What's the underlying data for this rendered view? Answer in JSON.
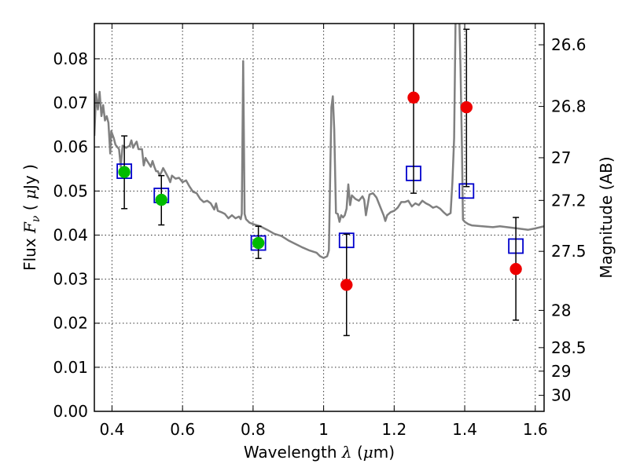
{
  "chart_data": {
    "type": "scatter",
    "xlabel": "Wavelength  λ (μm)",
    "xlabel_parts": {
      "pre": "Wavelength  ",
      "sym": "λ",
      "post": " (",
      "mu": "μ",
      "unit": "m)"
    },
    "ylabel": "Flux  Fν  ( μJy )",
    "ylabel_parts": {
      "pre": "Flux  ",
      "F": "F",
      "nu": "ν",
      "mid": "  ( ",
      "mu": "μ",
      "unit": "Jy )"
    },
    "y2label": "Magnitude (AB)",
    "xlim": [
      0.35,
      1.625
    ],
    "ylim": [
      0.0,
      0.088
    ],
    "grid": true,
    "x_ticks": [
      {
        "value": 0.4,
        "label": "0.4"
      },
      {
        "value": 0.6,
        "label": "0.6"
      },
      {
        "value": 0.8,
        "label": "0.8"
      },
      {
        "value": 1.0,
        "label": "1"
      },
      {
        "value": 1.2,
        "label": "1.2"
      },
      {
        "value": 1.4,
        "label": "1.4"
      },
      {
        "value": 1.6,
        "label": "1.6"
      }
    ],
    "y_ticks": [
      {
        "value": 0.0,
        "label": "0.00"
      },
      {
        "value": 0.01,
        "label": "0.01"
      },
      {
        "value": 0.02,
        "label": "0.02"
      },
      {
        "value": 0.03,
        "label": "0.03"
      },
      {
        "value": 0.04,
        "label": "0.04"
      },
      {
        "value": 0.05,
        "label": "0.05"
      },
      {
        "value": 0.06,
        "label": "0.06"
      },
      {
        "value": 0.07,
        "label": "0.07"
      },
      {
        "value": 0.08,
        "label": "0.08"
      }
    ],
    "y2_ticks": [
      {
        "mag": 26.6,
        "label": "26.6"
      },
      {
        "mag": 26.8,
        "label": "26.8"
      },
      {
        "mag": 27.0,
        "label": "27"
      },
      {
        "mag": 27.2,
        "label": "27.2"
      },
      {
        "mag": 27.5,
        "label": "27.5"
      },
      {
        "mag": 28.0,
        "label": "28"
      },
      {
        "mag": 28.5,
        "label": "28.5"
      },
      {
        "mag": 29.0,
        "label": "29"
      },
      {
        "mag": 30.0,
        "label": "30"
      }
    ],
    "series": [
      {
        "kind": "spectrum",
        "color": "#808080",
        "points": [
          [
            0.35,
            0.0625
          ],
          [
            0.355,
            0.072
          ],
          [
            0.36,
            0.0685
          ],
          [
            0.365,
            0.0725
          ],
          [
            0.37,
            0.067
          ],
          [
            0.375,
            0.0695
          ],
          [
            0.38,
            0.066
          ],
          [
            0.385,
            0.067
          ],
          [
            0.39,
            0.0655
          ],
          [
            0.395,
            0.0585
          ],
          [
            0.398,
            0.0636
          ],
          [
            0.405,
            0.062
          ],
          [
            0.41,
            0.0605
          ],
          [
            0.42,
            0.0595
          ],
          [
            0.425,
            0.0555
          ],
          [
            0.43,
            0.0603
          ],
          [
            0.44,
            0.0598
          ],
          [
            0.45,
            0.0603
          ],
          [
            0.455,
            0.0615
          ],
          [
            0.46,
            0.0598
          ],
          [
            0.465,
            0.0606
          ],
          [
            0.47,
            0.0612
          ],
          [
            0.475,
            0.0595
          ],
          [
            0.485,
            0.0595
          ],
          [
            0.49,
            0.0558
          ],
          [
            0.495,
            0.0575
          ],
          [
            0.5,
            0.0568
          ],
          [
            0.51,
            0.0555
          ],
          [
            0.515,
            0.0568
          ],
          [
            0.52,
            0.0555
          ],
          [
            0.525,
            0.0545
          ],
          [
            0.53,
            0.0545
          ],
          [
            0.535,
            0.0535
          ],
          [
            0.54,
            0.0542
          ],
          [
            0.545,
            0.0552
          ],
          [
            0.55,
            0.0545
          ],
          [
            0.56,
            0.053
          ],
          [
            0.565,
            0.052
          ],
          [
            0.57,
            0.0535
          ],
          [
            0.58,
            0.0528
          ],
          [
            0.59,
            0.053
          ],
          [
            0.6,
            0.052
          ],
          [
            0.61,
            0.0524
          ],
          [
            0.62,
            0.051
          ],
          [
            0.63,
            0.0498
          ],
          [
            0.64,
            0.0495
          ],
          [
            0.65,
            0.0482
          ],
          [
            0.66,
            0.0475
          ],
          [
            0.67,
            0.0478
          ],
          [
            0.68,
            0.0472
          ],
          [
            0.69,
            0.0458
          ],
          [
            0.695,
            0.0472
          ],
          [
            0.7,
            0.0455
          ],
          [
            0.71,
            0.0452
          ],
          [
            0.72,
            0.0448
          ],
          [
            0.73,
            0.0438
          ],
          [
            0.74,
            0.0445
          ],
          [
            0.75,
            0.0438
          ],
          [
            0.76,
            0.0442
          ],
          [
            0.765,
            0.0436
          ],
          [
            0.768,
            0.0448
          ],
          [
            0.772,
            0.0795
          ],
          [
            0.776,
            0.0448
          ],
          [
            0.78,
            0.0436
          ],
          [
            0.79,
            0.0428
          ],
          [
            0.8,
            0.0425
          ],
          [
            0.82,
            0.042
          ],
          [
            0.84,
            0.0412
          ],
          [
            0.86,
            0.0403
          ],
          [
            0.88,
            0.0398
          ],
          [
            0.9,
            0.0388
          ],
          [
            0.92,
            0.038
          ],
          [
            0.94,
            0.0372
          ],
          [
            0.96,
            0.0365
          ],
          [
            0.98,
            0.036
          ],
          [
            0.99,
            0.0352
          ],
          [
            1.0,
            0.0348
          ],
          [
            1.01,
            0.0352
          ],
          [
            1.015,
            0.0365
          ],
          [
            1.022,
            0.069
          ],
          [
            1.026,
            0.0715
          ],
          [
            1.03,
            0.064
          ],
          [
            1.035,
            0.045
          ],
          [
            1.04,
            0.0448
          ],
          [
            1.045,
            0.043
          ],
          [
            1.05,
            0.0445
          ],
          [
            1.055,
            0.044
          ],
          [
            1.06,
            0.0445
          ],
          [
            1.065,
            0.046
          ],
          [
            1.07,
            0.0515
          ],
          [
            1.075,
            0.0468
          ],
          [
            1.08,
            0.049
          ],
          [
            1.09,
            0.0482
          ],
          [
            1.1,
            0.0478
          ],
          [
            1.11,
            0.0488
          ],
          [
            1.115,
            0.048
          ],
          [
            1.12,
            0.0445
          ],
          [
            1.13,
            0.0492
          ],
          [
            1.14,
            0.0495
          ],
          [
            1.15,
            0.0485
          ],
          [
            1.16,
            0.0465
          ],
          [
            1.17,
            0.0445
          ],
          [
            1.175,
            0.0432
          ],
          [
            1.18,
            0.0445
          ],
          [
            1.19,
            0.0452
          ],
          [
            1.2,
            0.0455
          ],
          [
            1.21,
            0.0462
          ],
          [
            1.22,
            0.0475
          ],
          [
            1.23,
            0.0475
          ],
          [
            1.24,
            0.0478
          ],
          [
            1.25,
            0.0465
          ],
          [
            1.26,
            0.0472
          ],
          [
            1.27,
            0.0468
          ],
          [
            1.28,
            0.0478
          ],
          [
            1.29,
            0.0472
          ],
          [
            1.3,
            0.0468
          ],
          [
            1.31,
            0.0462
          ],
          [
            1.32,
            0.0465
          ],
          [
            1.33,
            0.046
          ],
          [
            1.34,
            0.0452
          ],
          [
            1.35,
            0.0445
          ],
          [
            1.36,
            0.045
          ],
          [
            1.365,
            0.052
          ],
          [
            1.37,
            0.062
          ],
          [
            1.375,
            0.095
          ],
          [
            1.383,
            0.095
          ],
          [
            1.388,
            0.078
          ],
          [
            1.392,
            0.06
          ],
          [
            1.395,
            0.0435
          ],
          [
            1.4,
            0.043
          ],
          [
            1.41,
            0.0425
          ],
          [
            1.42,
            0.0422
          ],
          [
            1.45,
            0.042
          ],
          [
            1.48,
            0.0418
          ],
          [
            1.5,
            0.042
          ],
          [
            1.52,
            0.0418
          ],
          [
            1.55,
            0.0415
          ],
          [
            1.58,
            0.0412
          ],
          [
            1.6,
            0.0415
          ],
          [
            1.625,
            0.042
          ]
        ]
      },
      {
        "kind": "model-squares",
        "color": "#0000cc",
        "points": [
          {
            "x": 0.435,
            "y": 0.0545
          },
          {
            "x": 0.54,
            "y": 0.049
          },
          {
            "x": 0.815,
            "y": 0.0382
          },
          {
            "x": 1.065,
            "y": 0.0388
          },
          {
            "x": 1.255,
            "y": 0.054
          },
          {
            "x": 1.405,
            "y": 0.05
          },
          {
            "x": 1.545,
            "y": 0.0375
          }
        ]
      },
      {
        "kind": "hst-points",
        "color": "#00bb00",
        "points": [
          {
            "x": 0.435,
            "y": 0.0543,
            "yerr_lo": 0.0083,
            "yerr_hi": 0.0082
          },
          {
            "x": 0.54,
            "y": 0.048,
            "yerr_lo": 0.0057,
            "yerr_hi": 0.0055
          },
          {
            "x": 0.815,
            "y": 0.0382,
            "yerr_lo": 0.0035,
            "yerr_hi": 0.0038
          }
        ]
      },
      {
        "kind": "ground-points",
        "color": "#ee0000",
        "points": [
          {
            "x": 1.065,
            "y": 0.0287,
            "yerr_lo": 0.0115,
            "yerr_hi": 0.0115
          },
          {
            "x": 1.255,
            "y": 0.0712,
            "yerr_lo": 0.0217,
            "yerr_hi": 0.03
          },
          {
            "x": 1.405,
            "y": 0.069,
            "yerr_lo": 0.018,
            "yerr_hi": 0.0177
          },
          {
            "x": 1.545,
            "y": 0.0323,
            "yerr_lo": 0.0116,
            "yerr_hi": 0.0117
          }
        ]
      }
    ]
  }
}
